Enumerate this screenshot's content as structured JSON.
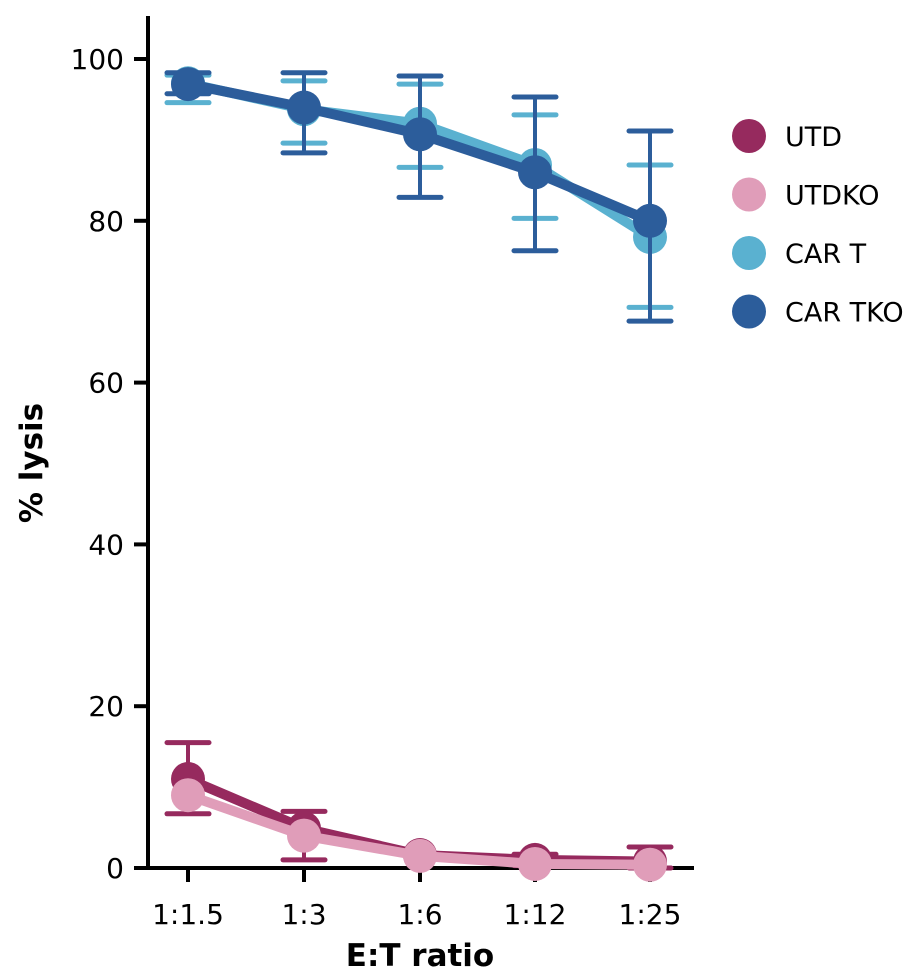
{
  "chart_data": {
    "type": "line",
    "xlabel": "E:T ratio",
    "ylabel": "% lysis",
    "categories": [
      "1:1.5",
      "1:3",
      "1:6",
      "1:12",
      "1:25"
    ],
    "ylim": [
      0,
      100
    ],
    "yticks": [
      0,
      20,
      40,
      60,
      80,
      100
    ],
    "grid": false,
    "legend_position": "right",
    "series": [
      {
        "name": "UTD",
        "color": "#962a5e",
        "values": [
          11,
          4.9,
          1.6,
          1.0,
          0.8
        ],
        "err_low": [
          6.7,
          1.0,
          1.6,
          0.3,
          0.0
        ],
        "err_high": [
          15.5,
          7.0,
          1.6,
          1.7,
          2.6
        ]
      },
      {
        "name": "UTDKO",
        "color": "#e09db9",
        "values": [
          9,
          4.0,
          1.5,
          0.5,
          0.4
        ],
        "err_low": [
          9,
          4.0,
          1.5,
          0.5,
          0.4
        ],
        "err_high": [
          9,
          4.0,
          1.5,
          0.5,
          0.4
        ]
      },
      {
        "name": "CAR T",
        "color": "#5ab1d0",
        "values": [
          97,
          93.8,
          92,
          86.9,
          78
        ],
        "err_low": [
          94.6,
          89.6,
          86.6,
          80.3,
          69.3
        ],
        "err_high": [
          98,
          97.3,
          96.9,
          93.1,
          86.9
        ]
      },
      {
        "name": "CAR TKO",
        "color": "#2c5d9b",
        "values": [
          96.9,
          94,
          90.7,
          86,
          80
        ],
        "err_low": [
          95.7,
          88.4,
          82.9,
          76.3,
          67.6
        ],
        "err_high": [
          98.3,
          98.3,
          97.9,
          95.3,
          91.1
        ]
      }
    ]
  }
}
